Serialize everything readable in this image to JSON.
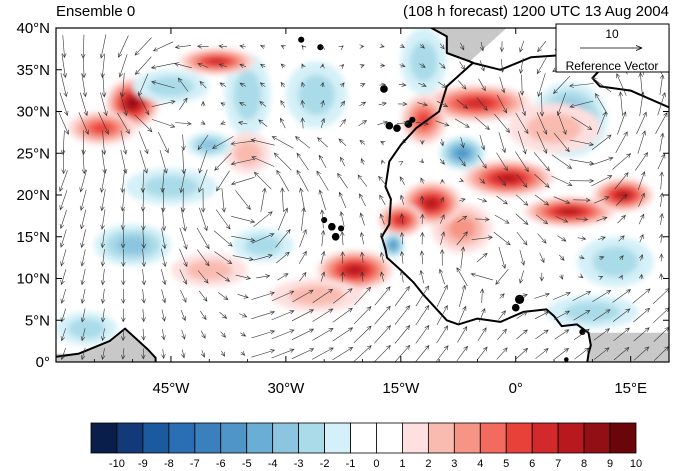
{
  "title_left": "Ensemble 0",
  "title_right": "(108 h forecast) 1200 UTC 13 Aug 2004",
  "lat_labels": [
    "40°N",
    "35°N",
    "30°N",
    "25°N",
    "20°N",
    "15°N",
    "10°N",
    "5°N",
    "0°"
  ],
  "lon_labels": [
    "45°W",
    "30°W",
    "15°W",
    "0°",
    "15°E"
  ],
  "reference_vector": {
    "magnitude": "10",
    "label": "Reference Vector"
  },
  "colorbar": {
    "labels": [
      "-10",
      "-9",
      "-8",
      "-7",
      "-6",
      "-5",
      "-4",
      "-3",
      "-2",
      "-1",
      "0",
      "1",
      "2",
      "3",
      "4",
      "5",
      "6",
      "7",
      "8",
      "9",
      "10"
    ],
    "colors": [
      "#0a1e4b",
      "#123a78",
      "#1c5aa0",
      "#2a6fb3",
      "#3a80bd",
      "#4f95c8",
      "#6aaed5",
      "#8cc5df",
      "#aadbe8",
      "#d4f0f8",
      "#ffffff",
      "#ffffff",
      "#fde0df",
      "#f9bbb0",
      "#f69486",
      "#f26b5e",
      "#e8413a",
      "#d22a2c",
      "#b8191e",
      "#920f15",
      "#6a050a"
    ]
  },
  "map": {
    "extent": {
      "lon_min": -60,
      "lon_max": 20,
      "lat_min": 0,
      "lat_max": 40
    },
    "land_color": "#c8c8c8",
    "coastline_color": "#000000",
    "blobs": [
      {
        "lon": -50,
        "lat": 31,
        "rx": 3.5,
        "ry": 3.0,
        "v": 8
      },
      {
        "lon": -54,
        "lat": 28,
        "rx": 4.5,
        "ry": 2.0,
        "v": 5
      },
      {
        "lon": -39,
        "lat": 36,
        "rx": 5.0,
        "ry": 1.6,
        "v": 6
      },
      {
        "lon": -35,
        "lat": 25,
        "rx": 3.0,
        "ry": 2.5,
        "v": 2
      },
      {
        "lon": -5,
        "lat": 31,
        "rx": 7.0,
        "ry": 2.2,
        "v": 6
      },
      {
        "lon": -1,
        "lat": 22,
        "rx": 6.0,
        "ry": 2.2,
        "v": 7
      },
      {
        "lon": 7,
        "lat": 18,
        "rx": 6.0,
        "ry": 1.8,
        "v": 7
      },
      {
        "lon": 14,
        "lat": 20,
        "rx": 4.0,
        "ry": 2.0,
        "v": 7
      },
      {
        "lon": -11,
        "lat": 19,
        "rx": 4.0,
        "ry": 2.6,
        "v": 7
      },
      {
        "lon": -15,
        "lat": 17,
        "rx": 3.0,
        "ry": 2.0,
        "v": 6
      },
      {
        "lon": -21,
        "lat": 11,
        "rx": 5.0,
        "ry": 2.4,
        "v": 7
      },
      {
        "lon": -12,
        "lat": 29,
        "rx": 3.0,
        "ry": 3.0,
        "v": 5
      },
      {
        "lon": -7,
        "lat": 16,
        "rx": 4.0,
        "ry": 3.0,
        "v": 3
      },
      {
        "lon": 5,
        "lat": 28,
        "rx": 6.0,
        "ry": 3.0,
        "v": 2
      },
      {
        "lon": -40,
        "lat": 11,
        "rx": 5.0,
        "ry": 2.0,
        "v": 2
      },
      {
        "lon": -26,
        "lat": 8,
        "rx": 6.0,
        "ry": 2.0,
        "v": 2
      },
      {
        "lon": -45,
        "lat": 33,
        "rx": 5.0,
        "ry": 2.0,
        "v": -2
      },
      {
        "lon": -35,
        "lat": 32,
        "rx": 3.0,
        "ry": 5.0,
        "v": -2
      },
      {
        "lon": -26,
        "lat": 32,
        "rx": 4.0,
        "ry": 4.0,
        "v": -2
      },
      {
        "lon": -12,
        "lat": 36,
        "rx": 3.0,
        "ry": 4.0,
        "v": -2
      },
      {
        "lon": 7,
        "lat": 29,
        "rx": 5.0,
        "ry": 4.5,
        "v": -4
      },
      {
        "lon": -7,
        "lat": 25,
        "rx": 3.0,
        "ry": 2.0,
        "v": -5
      },
      {
        "lon": -45,
        "lat": 21,
        "rx": 6.0,
        "ry": 2.2,
        "v": -2
      },
      {
        "lon": -40,
        "lat": 26,
        "rx": 3.0,
        "ry": 1.5,
        "v": -3
      },
      {
        "lon": -50,
        "lat": 14,
        "rx": 5.0,
        "ry": 2.5,
        "v": -3
      },
      {
        "lon": -33,
        "lat": 14,
        "rx": 4.0,
        "ry": 2.0,
        "v": -2
      },
      {
        "lon": 13,
        "lat": 12,
        "rx": 5.0,
        "ry": 3.0,
        "v": -2
      },
      {
        "lon": 10,
        "lat": 6,
        "rx": 6.0,
        "ry": 2.0,
        "v": -2
      },
      {
        "lon": -56,
        "lat": 4,
        "rx": 4.0,
        "ry": 2.0,
        "v": -2
      },
      {
        "lon": -16,
        "lat": 14,
        "rx": 1.5,
        "ry": 1.5,
        "v": -5
      }
    ],
    "coastlines": [
      [
        [
          -61,
          0.5
        ],
        [
          -57,
          1
        ],
        [
          -53,
          2.5
        ],
        [
          -51,
          4
        ],
        [
          -48,
          1.5
        ],
        [
          -47,
          0.5
        ],
        [
          -47,
          -1
        ]
      ],
      [
        [
          -12,
          40.5
        ],
        [
          -9,
          39
        ],
        [
          -9,
          37
        ],
        [
          -6,
          36
        ],
        [
          -5.5,
          35.8
        ],
        [
          -2,
          35
        ],
        [
          2,
          36.5
        ],
        [
          10,
          37
        ],
        [
          11,
          35
        ],
        [
          10,
          34
        ],
        [
          11,
          33
        ],
        [
          15,
          32.5
        ],
        [
          20,
          30.5
        ],
        [
          20.5,
          30.5
        ]
      ],
      [
        [
          -5.5,
          35.9
        ],
        [
          -9,
          33
        ],
        [
          -10,
          30
        ],
        [
          -13,
          28
        ],
        [
          -15,
          26
        ],
        [
          -16.5,
          24
        ],
        [
          -17,
          21
        ],
        [
          -16.3,
          19.5
        ],
        [
          -16.5,
          16.5
        ],
        [
          -17.5,
          15
        ],
        [
          -17,
          13.5
        ],
        [
          -16.8,
          12.5
        ],
        [
          -15,
          11
        ],
        [
          -13.3,
          9.5
        ],
        [
          -12,
          8
        ],
        [
          -11,
          7
        ],
        [
          -9,
          5
        ],
        [
          -7.5,
          4.5
        ],
        [
          -5,
          5.2
        ],
        [
          -2,
          4.8
        ],
        [
          1,
          6
        ],
        [
          4,
          6.3
        ],
        [
          5,
          5.5
        ],
        [
          6,
          4.3
        ],
        [
          8,
          4.5
        ],
        [
          9.5,
          3.5
        ],
        [
          9.8,
          2
        ],
        [
          9.5,
          1
        ],
        [
          9.2,
          -1
        ]
      ],
      [
        [
          -9,
          43
        ],
        [
          -9,
          41
        ]
      ],
      [
        [
          -5.5,
          43
        ],
        [
          -2,
          43.5
        ],
        [
          1,
          43.5
        ]
      ],
      [
        [
          15,
          38
        ],
        [
          16,
          38.5
        ],
        [
          17,
          39.2
        ]
      ],
      [
        [
          16,
          40.5
        ],
        [
          18,
          40
        ],
        [
          20,
          39.5
        ]
      ],
      [
        [
          20,
          36.5
        ],
        [
          21.5,
          37
        ]
      ]
    ],
    "islands": [
      {
        "lon": -16.5,
        "lat": 28.3,
        "r": 0.5
      },
      {
        "lon": -15.5,
        "lat": 28.0,
        "r": 0.5
      },
      {
        "lon": -14.0,
        "lat": 28.5,
        "r": 0.5
      },
      {
        "lon": -13.5,
        "lat": 29.0,
        "r": 0.4
      },
      {
        "lon": -17.2,
        "lat": 32.7,
        "r": 0.5
      },
      {
        "lon": -24.0,
        "lat": 16.2,
        "r": 0.5
      },
      {
        "lon": -23.5,
        "lat": 15.0,
        "r": 0.5
      },
      {
        "lon": -22.8,
        "lat": 16.0,
        "r": 0.4
      },
      {
        "lon": -25.0,
        "lat": 17.0,
        "r": 0.4
      },
      {
        "lon": -28.0,
        "lat": 38.6,
        "r": 0.4
      },
      {
        "lon": -25.5,
        "lat": 37.7,
        "r": 0.4
      },
      {
        "lon": 0.5,
        "lat": 7.5,
        "r": 0.6
      },
      {
        "lon": 0.0,
        "lat": 6.5,
        "r": 0.5
      },
      {
        "lon": 9.0,
        "lat": 40.0,
        "r": 1.0
      },
      {
        "lon": 14.0,
        "lat": 37.5,
        "r": 0.8
      },
      {
        "lon": 8.7,
        "lat": 3.6,
        "r": 0.4
      },
      {
        "lon": 6.6,
        "lat": 0.3,
        "r": 0.3
      }
    ],
    "wind_vortices": [
      {
        "lon": -35,
        "lat": 20,
        "s": 1,
        "str": 1.2
      },
      {
        "lon": 9,
        "lat": 29,
        "s": 1,
        "str": 1.4
      },
      {
        "lon": -47,
        "lat": 32,
        "s": 1,
        "str": 0.8
      },
      {
        "lon": -4,
        "lat": 12,
        "s": -1,
        "str": 0.5
      }
    ]
  }
}
